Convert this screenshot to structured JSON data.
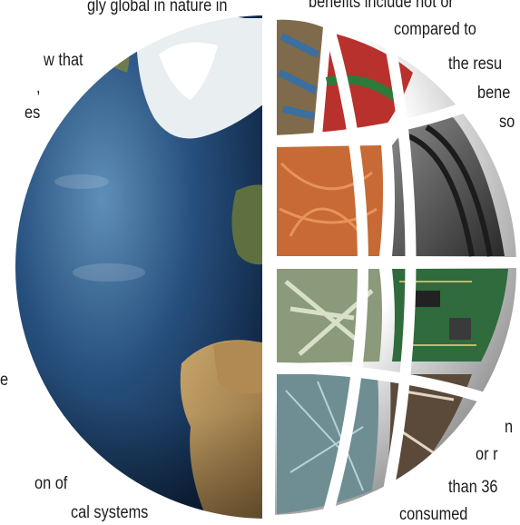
{
  "page": {
    "background": "#ffffff",
    "graphic_description_icon": "globe-recycling-icon"
  },
  "left_text_fragments": [
    "gly global in nature in",
    "w that",
    ",",
    "es",
    "e",
    "on of",
    "cal systems"
  ],
  "right_text_fragments": [
    "benefits include not or",
    "compared to",
    "the resu",
    "bene",
    "so",
    "n",
    "or r",
    "than 36",
    "consumed"
  ],
  "globe_panels": [
    {
      "material": "scrap-cables-icon",
      "color": "#7f6a4c"
    },
    {
      "material": "red-plastic-icon",
      "color": "#b8312c"
    },
    {
      "material": "copper-wire-icon",
      "color": "#c76a35"
    },
    {
      "material": "rubber-tires-icon",
      "color": "#4a4a4a"
    },
    {
      "material": "paper-scraps-icon",
      "color": "#8a9a7a"
    },
    {
      "material": "circuit-board-icon",
      "color": "#2f6b3c"
    },
    {
      "material": "glass-shards-icon",
      "color": "#6f8e94"
    },
    {
      "material": "mixed-scrap-icon",
      "color": "#5b4a3a"
    }
  ]
}
